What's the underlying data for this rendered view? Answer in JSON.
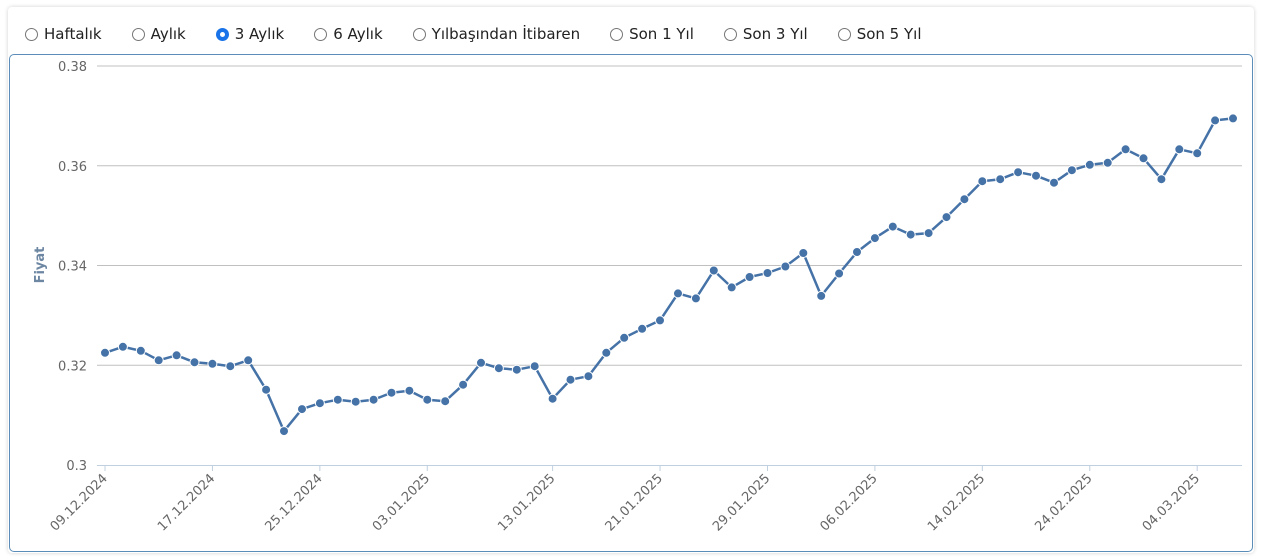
{
  "period_selector": {
    "options": [
      {
        "label": "Haftalık",
        "checked": false
      },
      {
        "label": "Aylık",
        "checked": false
      },
      {
        "label": "3 Aylık",
        "checked": true
      },
      {
        "label": "6 Aylık",
        "checked": false
      },
      {
        "label": "Yılbaşından İtibaren",
        "checked": false
      },
      {
        "label": "Son 1 Yıl",
        "checked": false
      },
      {
        "label": "Son 3 Yıl",
        "checked": false
      },
      {
        "label": "Son 5 Yıl",
        "checked": false
      }
    ]
  },
  "colors": {
    "line": "#4572a7",
    "grid": "#c0c0c0",
    "axis": "#c0d0e0",
    "checked_radio": "#1a73e8"
  },
  "chart_data": {
    "type": "line",
    "title": "",
    "xlabel": "",
    "ylabel": "Fiyat",
    "ylim": [
      0.3,
      0.38
    ],
    "y_ticks": [
      "0.3",
      "0.32",
      "0.34",
      "0.36",
      "0.38"
    ],
    "x_tick_labels": [
      "09.12.2024",
      "17.12.2024",
      "25.12.2024",
      "03.01.2025",
      "13.01.2025",
      "21.01.2025",
      "29.01.2025",
      "06.02.2025",
      "14.02.2025",
      "24.02.2025",
      "04.03.2025"
    ],
    "x_tick_point_index": [
      0,
      6,
      12,
      18,
      25,
      31,
      37,
      43,
      49,
      55,
      61
    ],
    "grid": true,
    "series": [
      {
        "values": [
          0.3225,
          0.3237,
          0.3229,
          0.321,
          0.322,
          0.3206,
          0.3203,
          0.3198,
          0.321,
          0.3151,
          0.3068,
          0.3112,
          0.3124,
          0.3131,
          0.3127,
          0.3131,
          0.3145,
          0.3149,
          0.3131,
          0.3128,
          0.3161,
          0.3205,
          0.3194,
          0.3191,
          0.3198,
          0.3133,
          0.3171,
          0.3178,
          0.3225,
          0.3255,
          0.3273,
          0.329,
          0.3344,
          0.3334,
          0.339,
          0.3356,
          0.3377,
          0.3385,
          0.3398,
          0.3425,
          0.3339,
          0.3384,
          0.3427,
          0.3455,
          0.3478,
          0.3462,
          0.3465,
          0.3497,
          0.3533,
          0.3569,
          0.3573,
          0.3587,
          0.358,
          0.3566,
          0.3591,
          0.3602,
          0.3606,
          0.3633,
          0.3615,
          0.3573,
          0.3633,
          0.3625,
          0.3691,
          0.3695
        ]
      }
    ]
  }
}
